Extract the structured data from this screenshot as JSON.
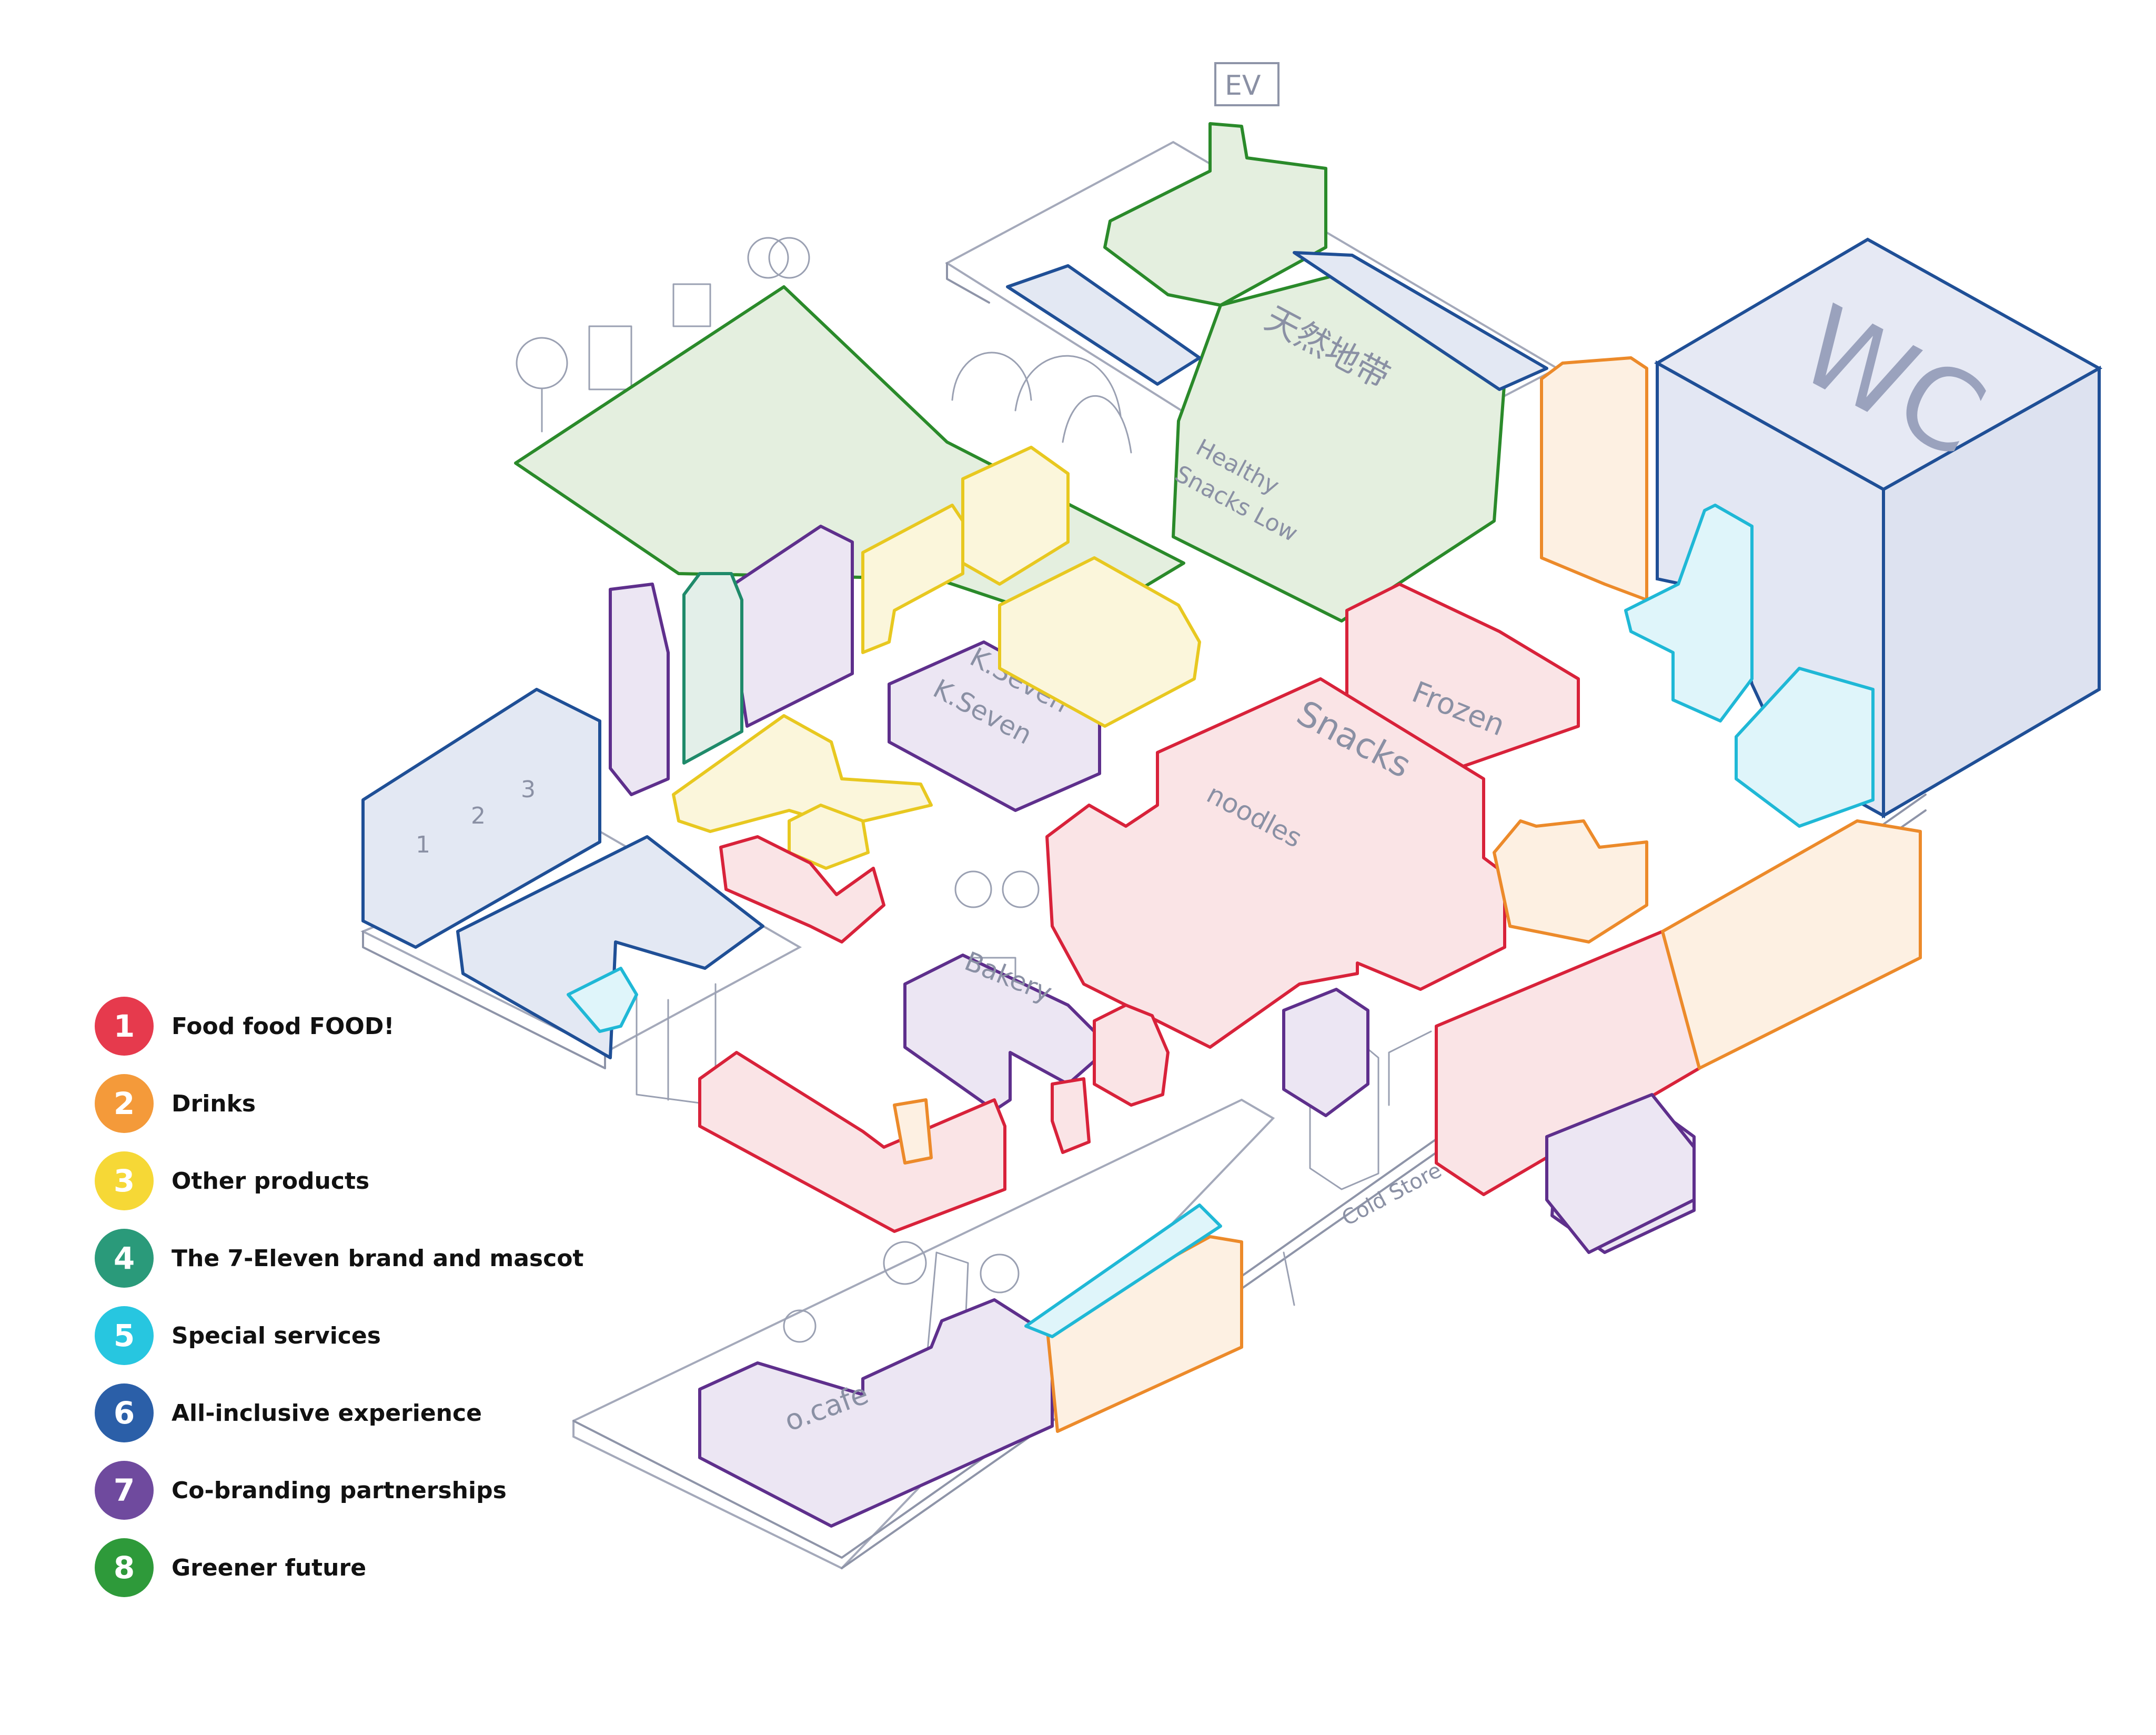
{
  "categories": [
    {
      "number": "1",
      "label": "Food food FOOD!",
      "color": "#e63a4d"
    },
    {
      "number": "2",
      "label": "Drinks",
      "color": "#f49a3a"
    },
    {
      "number": "3",
      "label": "Other products",
      "color": "#f6d836"
    },
    {
      "number": "4",
      "label": "The 7-Eleven brand and mascot",
      "color": "#2a9a7a"
    },
    {
      "number": "5",
      "label": "Special services",
      "color": "#27c6e0"
    },
    {
      "number": "6",
      "label": "All-inclusive experience",
      "color": "#2b5fa8"
    },
    {
      "number": "7",
      "label": "Co-branding partnerships",
      "color": "#6f4a9e"
    },
    {
      "number": "8",
      "label": "Greener future",
      "color": "#2e9a3a"
    }
  ],
  "zone_outline_colors": {
    "red": "#d8223a",
    "orange": "#ec8a2a",
    "yellow": "#e8c820",
    "teal": "#1f8a6a",
    "cyan": "#1fb8d6",
    "blue": "#1f4f96",
    "purple": "#5e2f8c",
    "green": "#2a8a2a"
  },
  "sketch_labels": {
    "ev": "EV",
    "wc": "WC",
    "frozen": "Frozen",
    "snacks": "Snacks",
    "noodles": "noodles",
    "healthy": "Healthy",
    "snacks_low": "Snacks Low",
    "kseven_1": "K.Seven",
    "kseven_2": "K.Seven",
    "bakery": "Bakery",
    "cafe": "o.cafe",
    "cold_store": "Cold Store",
    "chinese_sign": "天然地带",
    "locker_1": "1",
    "locker_2": "2",
    "locker_3": "3"
  }
}
